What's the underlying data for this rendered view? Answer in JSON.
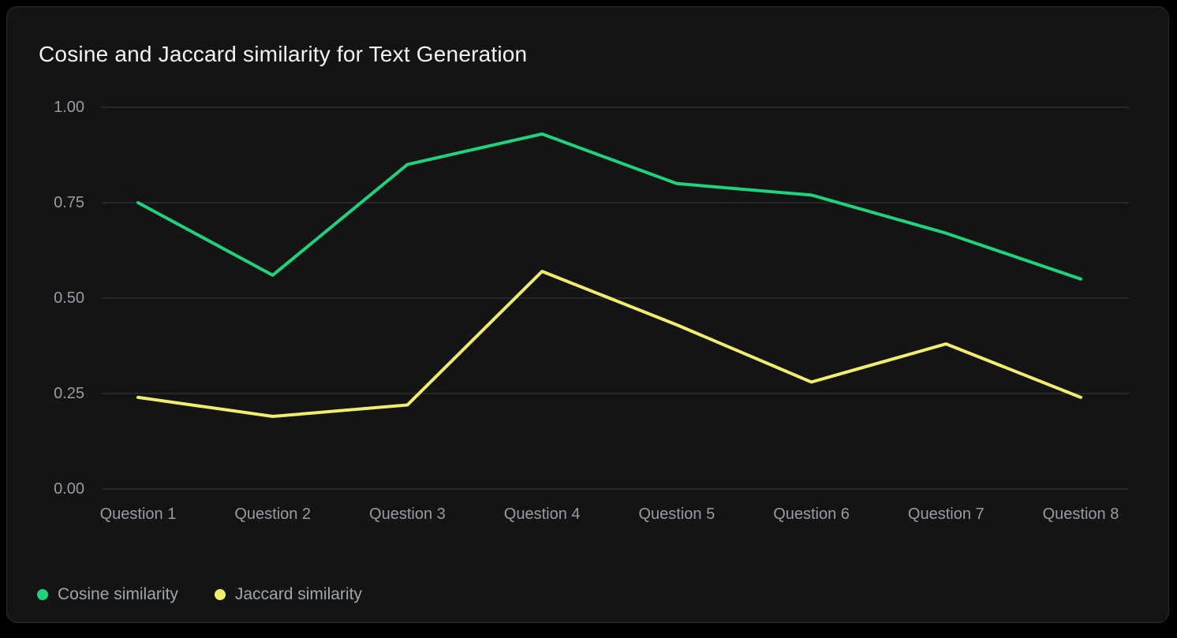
{
  "chart_data": {
    "type": "line",
    "title": "Cosine and Jaccard similarity for Text Generation",
    "categories": [
      "Question 1",
      "Question 2",
      "Question 3",
      "Question 4",
      "Question 5",
      "Question 6",
      "Question 7",
      "Question 8"
    ],
    "series": [
      {
        "name": "Cosine similarity",
        "color": "#1fd37d",
        "values": [
          0.75,
          0.56,
          0.85,
          0.93,
          0.8,
          0.77,
          0.67,
          0.55
        ]
      },
      {
        "name": "Jaccard similarity",
        "color": "#f1ee6e",
        "values": [
          0.24,
          0.19,
          0.22,
          0.57,
          0.43,
          0.28,
          0.38,
          0.24
        ]
      }
    ],
    "xlabel": "",
    "ylabel": "",
    "ylim": [
      0,
      1
    ],
    "yticks": [
      "1.00",
      "0.75",
      "0.50",
      "0.25",
      "0.00"
    ],
    "grid": "horizontal",
    "legend_position": "bottom-left"
  },
  "colors": {
    "page_background": "#000000",
    "card_background": "#141414",
    "card_border": "#2c2c2c",
    "gridline": "#3a3d41",
    "title_text": "#f2f3f5",
    "axis_text": "#969ca3",
    "legend_text": "#a0a6ac"
  }
}
